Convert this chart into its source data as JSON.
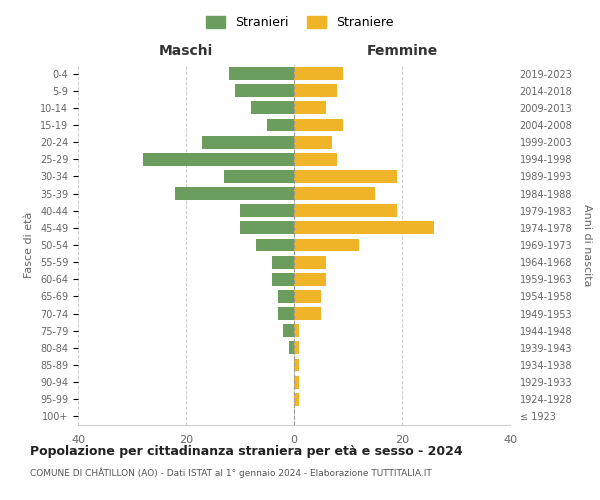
{
  "age_groups": [
    "100+",
    "95-99",
    "90-94",
    "85-89",
    "80-84",
    "75-79",
    "70-74",
    "65-69",
    "60-64",
    "55-59",
    "50-54",
    "45-49",
    "40-44",
    "35-39",
    "30-34",
    "25-29",
    "20-24",
    "15-19",
    "10-14",
    "5-9",
    "0-4"
  ],
  "birth_years": [
    "≤ 1923",
    "1924-1928",
    "1929-1933",
    "1934-1938",
    "1939-1943",
    "1944-1948",
    "1949-1953",
    "1954-1958",
    "1959-1963",
    "1964-1968",
    "1969-1973",
    "1974-1978",
    "1979-1983",
    "1984-1988",
    "1989-1993",
    "1994-1998",
    "1999-2003",
    "2004-2008",
    "2009-2013",
    "2014-2018",
    "2019-2023"
  ],
  "maschi": [
    0,
    0,
    0,
    0,
    1,
    2,
    3,
    3,
    4,
    4,
    7,
    10,
    10,
    22,
    13,
    28,
    17,
    5,
    8,
    11,
    12
  ],
  "femmine": [
    0,
    1,
    1,
    1,
    1,
    1,
    5,
    5,
    6,
    6,
    12,
    26,
    19,
    15,
    19,
    8,
    7,
    9,
    6,
    8,
    9
  ],
  "color_maschi": "#6b9e5e",
  "color_femmine": "#f0b429",
  "title": "Popolazione per cittadinanza straniera per età e sesso - 2024",
  "subtitle": "COMUNE DI CHÂTILLON (AO) - Dati ISTAT al 1° gennaio 2024 - Elaborazione TUTTITALIA.IT",
  "xlabel_left": "Maschi",
  "xlabel_right": "Femmine",
  "ylabel_left": "Fasce di età",
  "ylabel_right": "Anni di nascita",
  "legend_maschi": "Stranieri",
  "legend_femmine": "Straniere",
  "xlim": 40,
  "background_color": "#ffffff",
  "grid_color": "#cccccc"
}
